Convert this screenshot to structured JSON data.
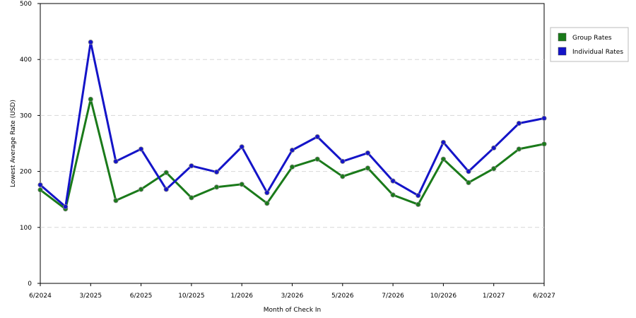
{
  "chart_data": {
    "type": "line",
    "xlabel": "Month of Check In",
    "ylabel": "Lowest Average Rate (USD)",
    "ylim": [
      0,
      500
    ],
    "yticks": [
      0,
      100,
      200,
      300,
      400,
      500
    ],
    "x_tick_labels": [
      "6/2024",
      "3/2025",
      "6/2025",
      "10/2025",
      "1/2026",
      "3/2026",
      "5/2026",
      "7/2026",
      "10/2026",
      "1/2027",
      "6/2027"
    ],
    "grid": "horizontal dashed",
    "legend_position": "right",
    "series": [
      {
        "name": "Group Rates",
        "color": "#1a7a1a",
        "values": [
          167,
          133,
          329,
          148,
          168,
          198,
          153,
          172,
          177,
          143,
          208,
          222,
          191,
          206,
          158,
          141,
          222,
          180,
          205,
          240,
          249
        ]
      },
      {
        "name": "Individual Rates",
        "color": "#1414c8",
        "values": [
          176,
          137,
          431,
          218,
          240,
          168,
          210,
          199,
          244,
          162,
          238,
          262,
          218,
          233,
          183,
          157,
          252,
          200,
          242,
          286,
          295
        ]
      }
    ]
  }
}
